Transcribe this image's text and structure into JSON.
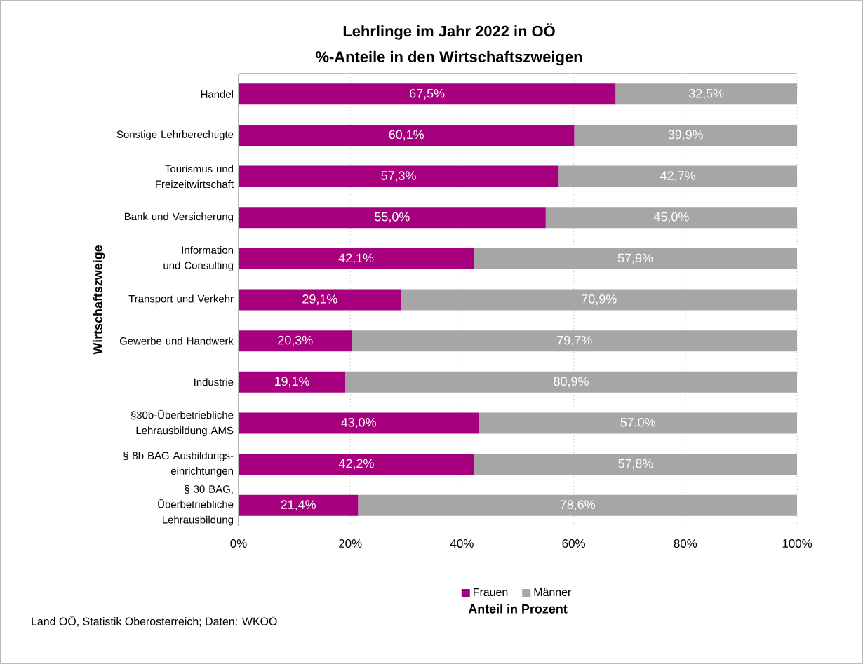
{
  "chart_data": {
    "type": "bar",
    "orientation": "horizontal",
    "stacked": true,
    "title": "Lehrlinge im Jahr 2022 in OÖ",
    "subtitle": "%-Anteile in den Wirtschaftszweigen",
    "xlabel": "Anteil in Prozent",
    "ylabel": "Wirtschaftszweige",
    "annotations": [
      "Land OÖ, Statistik Oberösterreich; Daten: WKOÖ"
    ],
    "categories": [
      "Handel",
      "Sonstige Lehrberechtigte",
      "Tourismus und Freizeitwirtschaft",
      "Bank und Versicherung",
      "Information und Consulting",
      "Transport und Verkehr",
      "Gewerbe und Handwerk",
      "Industrie",
      "§30b-Überbetriebliche Lehrausbildung AMS",
      "§ 8b BAG Ausbildungs-einrichtungen",
      "§ 30 BAG, Überbetriebliche Lehrausbildung"
    ],
    "series": [
      {
        "name": "Frauen",
        "color": "#a6007f",
        "values": [
          67.5,
          60.1,
          57.3,
          55.0,
          42.1,
          29.1,
          20.3,
          19.1,
          43.0,
          42.2,
          21.4
        ],
        "value_labels": [
          "67,5%",
          "60,1%",
          "57,3%",
          "55,0%",
          "42,1%",
          "29,1%",
          "20,3%",
          "19,1%",
          "43,0%",
          "42,2%",
          "21,4%"
        ]
      },
      {
        "name": "Männer",
        "color": "#a6a6a6",
        "values": [
          32.5,
          39.9,
          42.7,
          45.0,
          57.9,
          70.9,
          79.7,
          80.9,
          57.0,
          57.8,
          78.6
        ],
        "value_labels": [
          "32,5%",
          "39,9%",
          "42,7%",
          "45,0%",
          "57,9%",
          "70,9%",
          "79,7%",
          "80,9%",
          "57,0%",
          "57,8%",
          "78,6%"
        ]
      }
    ],
    "xlim": [
      0,
      100
    ],
    "xticks": [
      {
        "value": 0,
        "label": "0%"
      },
      {
        "value": 20,
        "label": "20%"
      },
      {
        "value": 40,
        "label": "40%"
      },
      {
        "value": 60,
        "label": "60%"
      },
      {
        "value": 80,
        "label": "80%"
      },
      {
        "value": 100,
        "label": "100%"
      }
    ],
    "grid": "x",
    "legend": "bottom"
  }
}
